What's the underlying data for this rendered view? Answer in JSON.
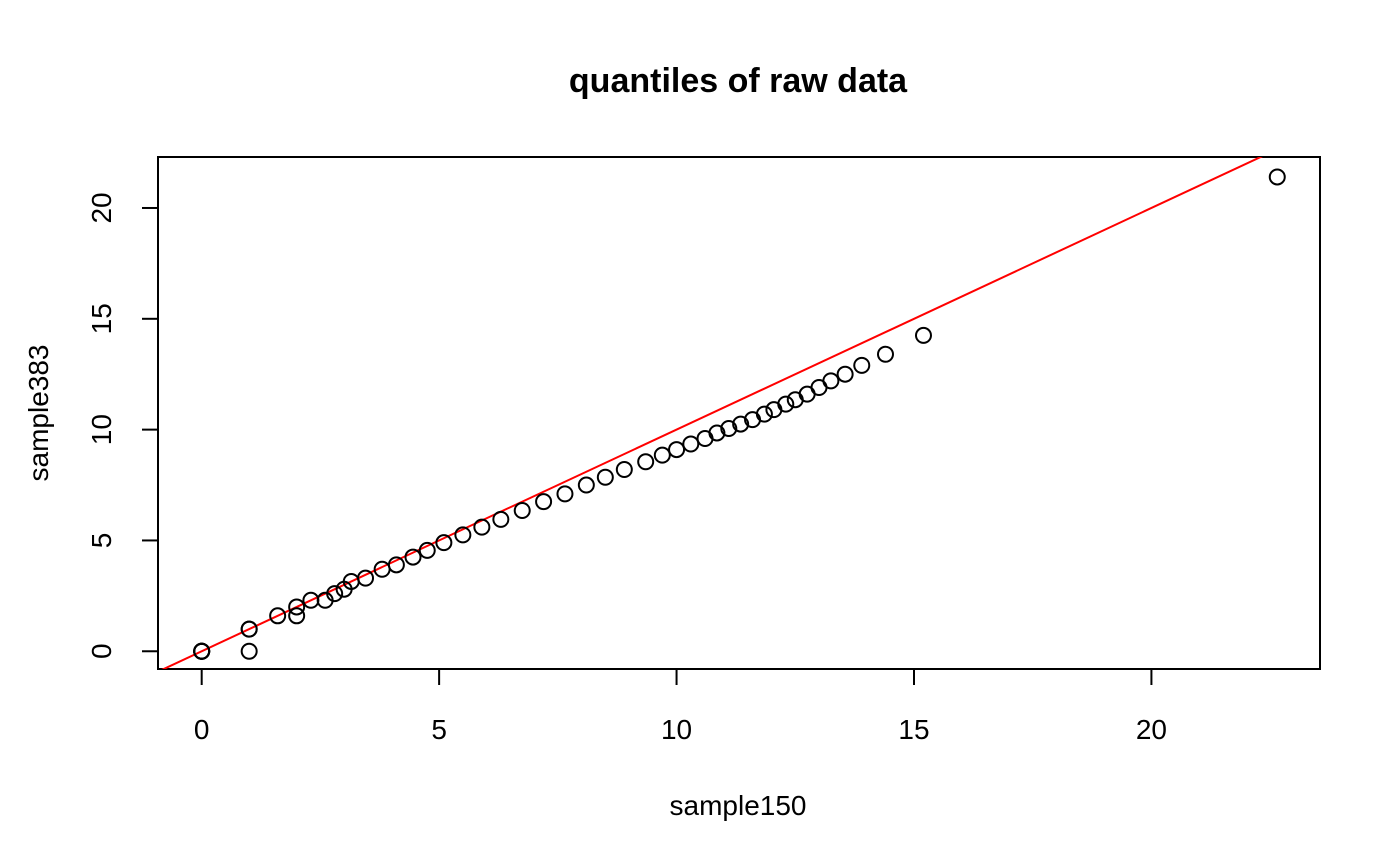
{
  "chart_data": {
    "type": "scatter",
    "title": "quantiles of raw data",
    "xlabel": "sample150",
    "ylabel": "sample383",
    "xlim": [
      -0.92,
      23.55
    ],
    "ylim": [
      -0.8,
      22.3
    ],
    "x_ticks": [
      0,
      5,
      10,
      15,
      20
    ],
    "y_ticks": [
      0,
      5,
      10,
      15,
      20
    ],
    "grid": false,
    "legend": "none",
    "reference_line": {
      "intercept": 0,
      "slope": 1,
      "color": "#ff0000"
    },
    "points": [
      [
        0,
        0
      ],
      [
        0,
        0
      ],
      [
        0,
        0
      ],
      [
        0,
        0
      ],
      [
        0,
        0
      ],
      [
        1,
        0
      ],
      [
        1,
        1
      ],
      [
        1,
        1
      ],
      [
        1.6,
        1.6
      ],
      [
        2,
        1.6
      ],
      [
        2,
        2
      ],
      [
        2.3,
        2.3
      ],
      [
        2.6,
        2.3
      ],
      [
        2.8,
        2.6
      ],
      [
        3,
        2.8
      ],
      [
        3.15,
        3.15
      ],
      [
        3.45,
        3.3
      ],
      [
        3.8,
        3.7
      ],
      [
        4.1,
        3.9
      ],
      [
        4.45,
        4.25
      ],
      [
        4.75,
        4.55
      ],
      [
        5.1,
        4.9
      ],
      [
        5.5,
        5.25
      ],
      [
        5.9,
        5.6
      ],
      [
        6.3,
        5.95
      ],
      [
        6.75,
        6.35
      ],
      [
        7.2,
        6.75
      ],
      [
        7.65,
        7.1
      ],
      [
        8.1,
        7.5
      ],
      [
        8.5,
        7.85
      ],
      [
        8.9,
        8.2
      ],
      [
        9.35,
        8.55
      ],
      [
        9.7,
        8.85
      ],
      [
        10,
        9.1
      ],
      [
        10.3,
        9.35
      ],
      [
        10.6,
        9.6
      ],
      [
        10.85,
        9.85
      ],
      [
        11.1,
        10.05
      ],
      [
        11.35,
        10.25
      ],
      [
        11.6,
        10.45
      ],
      [
        11.85,
        10.7
      ],
      [
        12.05,
        10.9
      ],
      [
        12.3,
        11.15
      ],
      [
        12.5,
        11.35
      ],
      [
        12.75,
        11.6
      ],
      [
        13,
        11.9
      ],
      [
        13.25,
        12.2
      ],
      [
        13.55,
        12.5
      ],
      [
        13.9,
        12.9
      ],
      [
        14.4,
        13.4
      ],
      [
        15.2,
        14.25
      ],
      [
        22.65,
        21.4
      ]
    ],
    "colors": {
      "points": "#000000",
      "line": "#ff0000",
      "axes": "#000000"
    }
  }
}
